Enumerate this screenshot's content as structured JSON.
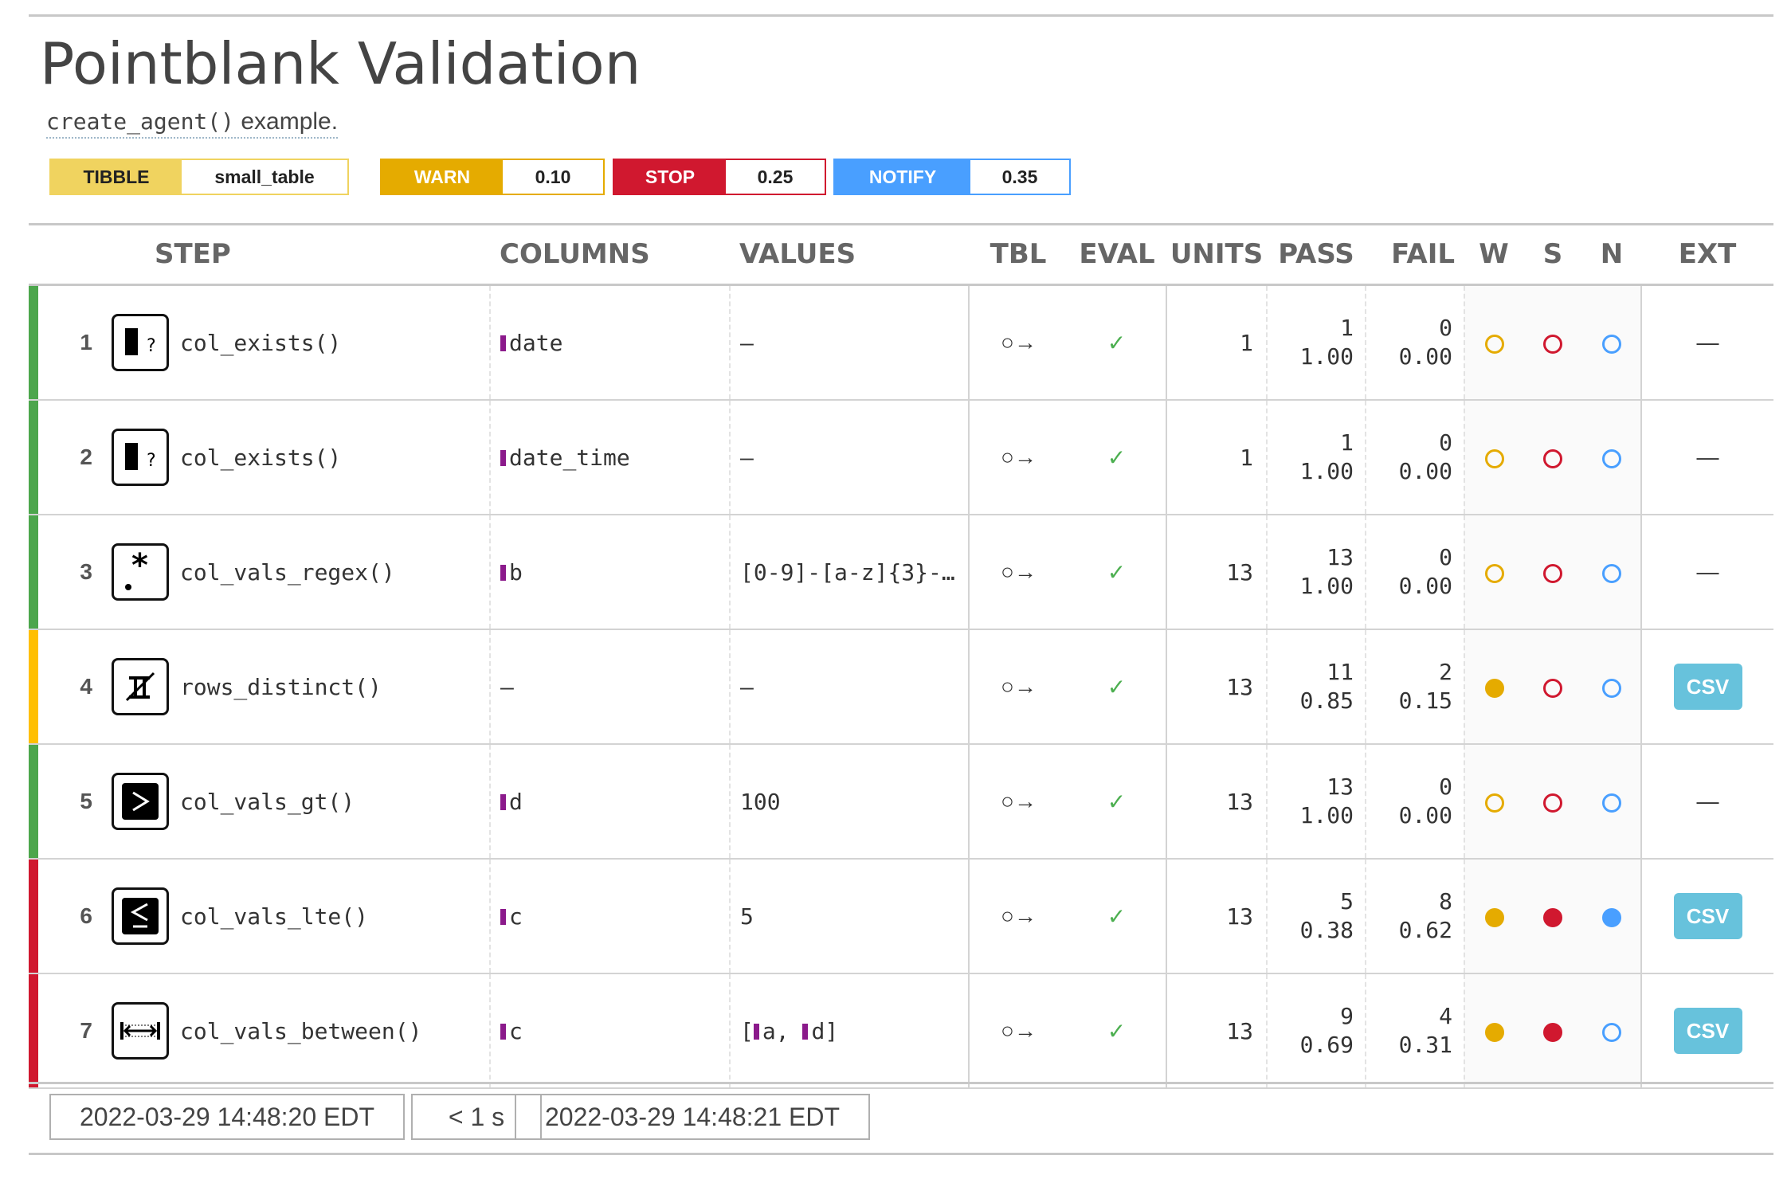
{
  "header": {
    "title": "Pointblank Validation",
    "subtitle_code": "create_agent()",
    "subtitle_text": " example."
  },
  "pills": [
    {
      "label": "TIBBLE",
      "value": "small_table",
      "color": "#f0d35f",
      "text_color": "#222222"
    },
    {
      "label": "WARN",
      "value": "0.10",
      "color": "#e5ab00",
      "text_color": "#ffffff"
    },
    {
      "label": "STOP",
      "value": "0.25",
      "color": "#d0182f",
      "text_color": "#ffffff"
    },
    {
      "label": "NOTIFY",
      "value": "0.35",
      "color": "#499fff",
      "text_color": "#ffffff"
    }
  ],
  "table": {
    "headers": {
      "step": "STEP",
      "columns": "COLUMNS",
      "values": "VALUES",
      "tbl": "TBL",
      "eval": "EVAL",
      "units": "UNITS",
      "pass": "PASS",
      "fail": "FAIL",
      "w": "W",
      "s": "S",
      "n": "N",
      "ext": "EXT"
    },
    "rows": [
      {
        "num": "1",
        "icon": "col-exists-icon",
        "fn": "col_exists()",
        "column": "date",
        "values": "—",
        "tbl": "○→",
        "eval": "✓",
        "units": "1",
        "pass_n": "1",
        "pass_f": "1.00",
        "fail_n": "0",
        "fail_f": "0.00",
        "status_color": "#4ca64c",
        "w": "empty",
        "s": "empty",
        "n": "empty",
        "ext": "—"
      },
      {
        "num": "2",
        "icon": "col-exists-icon",
        "fn": "col_exists()",
        "column": "date_time",
        "values": "—",
        "tbl": "○→",
        "eval": "✓",
        "units": "1",
        "pass_n": "1",
        "pass_f": "1.00",
        "fail_n": "0",
        "fail_f": "0.00",
        "status_color": "#4ca64c",
        "w": "empty",
        "s": "empty",
        "n": "empty",
        "ext": "—"
      },
      {
        "num": "3",
        "icon": "regex-icon",
        "fn": "col_vals_regex()",
        "column": "b",
        "values": "[0-9]-[a-z]{3}-…",
        "tbl": "○→",
        "eval": "✓",
        "units": "13",
        "pass_n": "13",
        "pass_f": "1.00",
        "fail_n": "0",
        "fail_f": "0.00",
        "status_color": "#4ca64c",
        "w": "empty",
        "s": "empty",
        "n": "empty",
        "ext": "—"
      },
      {
        "num": "4",
        "icon": "rows-distinct-icon",
        "fn": "rows_distinct()",
        "column": "—",
        "values": "—",
        "tbl": "○→",
        "eval": "✓",
        "units": "13",
        "pass_n": "11",
        "pass_f": "0.85",
        "fail_n": "2",
        "fail_f": "0.15",
        "status_color": "#ffbf00",
        "w": "filled",
        "s": "empty",
        "n": "empty",
        "ext": "CSV"
      },
      {
        "num": "5",
        "icon": "greater-than-icon",
        "fn": "col_vals_gt()",
        "column": "d",
        "values": "100",
        "tbl": "○→",
        "eval": "✓",
        "units": "13",
        "pass_n": "13",
        "pass_f": "1.00",
        "fail_n": "0",
        "fail_f": "0.00",
        "status_color": "#4ca64c",
        "w": "empty",
        "s": "empty",
        "n": "empty",
        "ext": "—"
      },
      {
        "num": "6",
        "icon": "less-equal-icon",
        "fn": "col_vals_lte()",
        "column": "c",
        "values": "5",
        "tbl": "○→",
        "eval": "✓",
        "units": "13",
        "pass_n": "5",
        "pass_f": "0.38",
        "fail_n": "8",
        "fail_f": "0.62",
        "status_color": "#d0182f",
        "w": "filled",
        "s": "filled",
        "n": "filled",
        "ext": "CSV"
      },
      {
        "num": "7",
        "icon": "between-icon",
        "fn": "col_vals_between()",
        "column": "c",
        "values_parts": [
          "[",
          "a",
          ", ",
          "d",
          "]"
        ],
        "tbl": "○→",
        "eval": "✓",
        "units": "13",
        "pass_n": "9",
        "pass_f": "0.69",
        "fail_n": "4",
        "fail_f": "0.31",
        "status_color": "#d0182f",
        "w": "filled",
        "s": "filled",
        "n": "empty",
        "ext": "CSV"
      }
    ]
  },
  "colors": {
    "warn": "#e5ab00",
    "stop": "#d0182f",
    "notify": "#499fff",
    "csv": "#67c2dc",
    "column_marker": "#8b1a8b"
  },
  "footer": {
    "start_time": "2022-03-29 14:48:20 EDT",
    "duration": "< 1 s",
    "end_time": "2022-03-29 14:48:21 EDT"
  }
}
